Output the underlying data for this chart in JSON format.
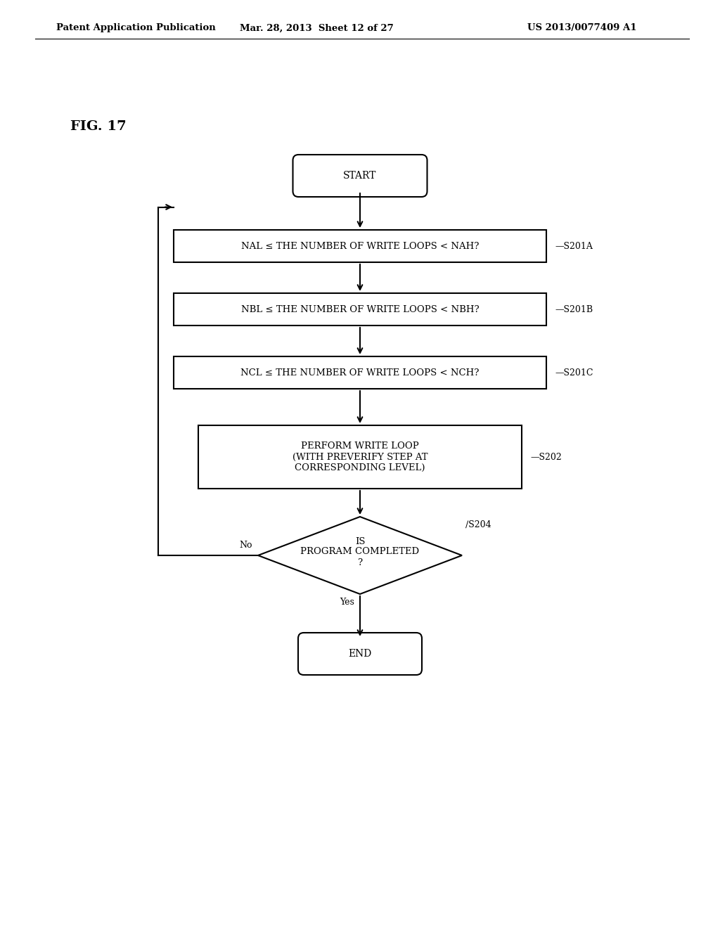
{
  "bg_color": "#ffffff",
  "header_left": "Patent Application Publication",
  "header_mid": "Mar. 28, 2013  Sheet 12 of 27",
  "header_right": "US 2013/0077409 A1",
  "fig_label": "FIG. 17",
  "line_color": "#000000",
  "text_color": "#000000",
  "font_size_header": 9.5,
  "font_size_node": 9.5,
  "font_size_fig": 14,
  "start_label": "START",
  "end_label": "END",
  "s201a_label": "NAL ≤ THE NUMBER OF WRITE LOOPS < NAH?",
  "s201a_tag": "S201A",
  "s201b_label": "NBL ≤ THE NUMBER OF WRITE LOOPS < NBH?",
  "s201b_tag": "S201B",
  "s201c_label": "NCL ≤ THE NUMBER OF WRITE LOOPS < NCH?",
  "s201c_tag": "S201C",
  "s202_label": "PERFORM WRITE LOOP\n(WITH PREVERIFY STEP AT\nCORRESPONDING LEVEL)",
  "s202_tag": "S202",
  "s204_label": "IS\nPROGRAM COMPLETED\n?",
  "s204_tag": "S204",
  "no_label": "No",
  "yes_label": "Yes"
}
